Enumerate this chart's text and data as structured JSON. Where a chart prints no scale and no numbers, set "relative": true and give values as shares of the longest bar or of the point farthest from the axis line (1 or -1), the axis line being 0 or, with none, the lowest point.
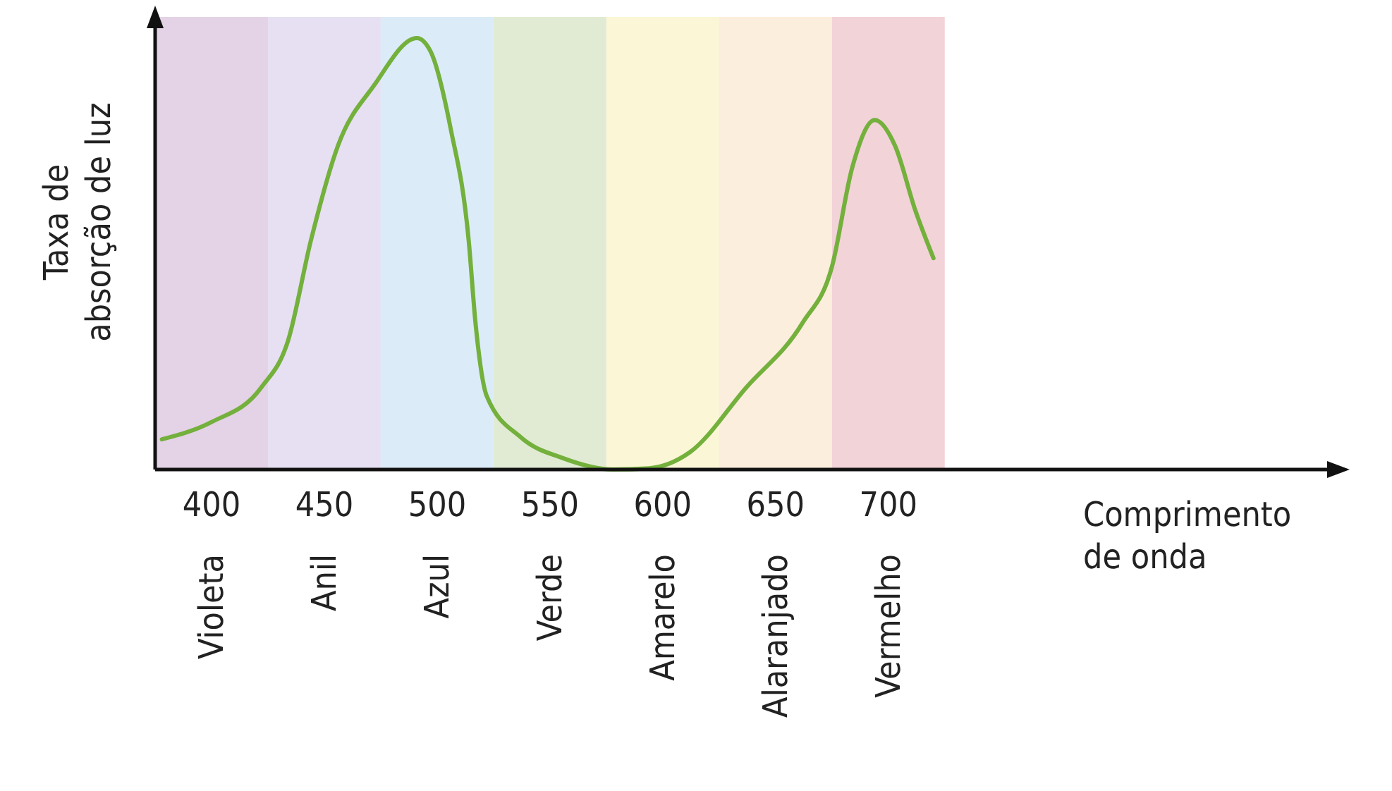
{
  "chart_data": {
    "type": "line",
    "relative": true,
    "xlabel": "Comprimento de onda",
    "ylabel": "Taxa de absorção de luz",
    "xlim": [
      375,
      897
    ],
    "xticks": [
      400,
      450,
      500,
      550,
      600,
      650,
      700
    ],
    "grid": false,
    "line_style": "solid",
    "series": [
      {
        "color": "#73b03c",
        "x": [
          378,
          400,
          422,
          434,
          444,
          456,
          472,
          491,
          497,
          506,
          514,
          517,
          522,
          537,
          556,
          578,
          594,
          612,
          637,
          662,
          675,
          684,
          694,
          703,
          712,
          720
        ],
        "values": [
          0.07,
          0.11,
          0.19,
          0.3,
          0.53,
          0.75,
          0.89,
          1,
          0.97,
          0.79,
          0.53,
          0.34,
          0.17,
          0.075,
          0.026,
          0,
          0.003,
          0.04,
          0.19,
          0.34,
          0.47,
          0.7,
          0.81,
          0.75,
          0.6,
          0.49
        ]
      }
    ],
    "bands": [
      {
        "axis": "x",
        "from": 375,
        "to": 425,
        "label": "Violeta",
        "color": "#e4d2e6"
      },
      {
        "axis": "x",
        "from": 425,
        "to": 475,
        "label": "Anil",
        "color": "#e6e0f2"
      },
      {
        "axis": "x",
        "from": 475,
        "to": 525,
        "label": "Azul",
        "color": "#dcebf8"
      },
      {
        "axis": "x",
        "from": 525,
        "to": 575,
        "label": "Verde",
        "color": "#e1ebd3"
      },
      {
        "axis": "x",
        "from": 575,
        "to": 625,
        "label": "Amarelo",
        "color": "#fbf6d6"
      },
      {
        "axis": "x",
        "from": 625,
        "to": 675,
        "label": "Alaranjado",
        "color": "#fbeedc"
      },
      {
        "axis": "x",
        "from": 675,
        "to": 725,
        "label": "Vermelho",
        "color": "#f2d3d8"
      }
    ]
  }
}
